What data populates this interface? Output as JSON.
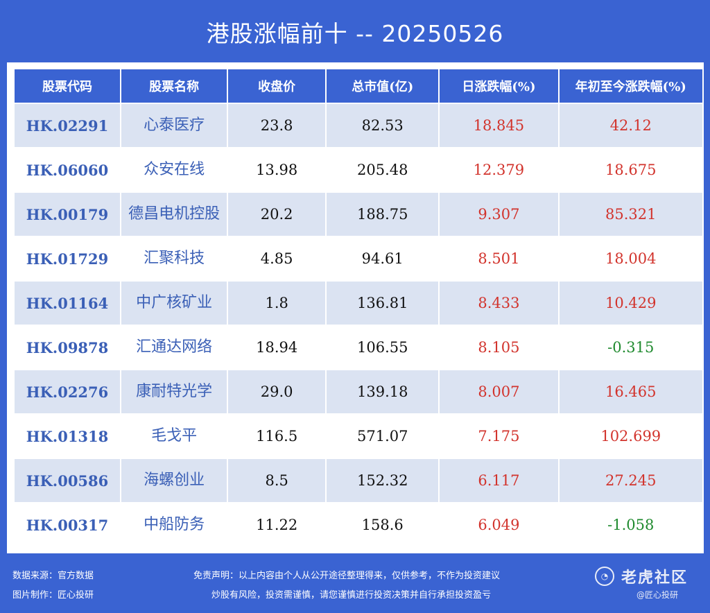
{
  "title": "港股涨幅前十 -- 20250526",
  "headers": [
    "股票代码",
    "股票名称",
    "收盘价",
    "总市值(亿)",
    "日涨跌幅(%)",
    "年初至今涨跌幅(%)"
  ],
  "rows": [
    {
      "code": "HK.02291",
      "name": "心泰医疗",
      "close": "23.8",
      "mcap": "82.53",
      "day": "18.845",
      "ytd": "42.12",
      "ytd_sign": "up"
    },
    {
      "code": "HK.06060",
      "name": "众安在线",
      "close": "13.98",
      "mcap": "205.48",
      "day": "12.379",
      "ytd": "18.675",
      "ytd_sign": "up"
    },
    {
      "code": "HK.00179",
      "name": "德昌电机控股",
      "close": "20.2",
      "mcap": "188.75",
      "day": "9.307",
      "ytd": "85.321",
      "ytd_sign": "up"
    },
    {
      "code": "HK.01729",
      "name": "汇聚科技",
      "close": "4.85",
      "mcap": "94.61",
      "day": "8.501",
      "ytd": "18.004",
      "ytd_sign": "up"
    },
    {
      "code": "HK.01164",
      "name": "中广核矿业",
      "close": "1.8",
      "mcap": "136.81",
      "day": "8.433",
      "ytd": "10.429",
      "ytd_sign": "up"
    },
    {
      "code": "HK.09878",
      "name": "汇通达网络",
      "close": "18.94",
      "mcap": "106.55",
      "day": "8.105",
      "ytd": "-0.315",
      "ytd_sign": "down"
    },
    {
      "code": "HK.02276",
      "name": "康耐特光学",
      "close": "29.0",
      "mcap": "139.18",
      "day": "8.007",
      "ytd": "16.465",
      "ytd_sign": "up"
    },
    {
      "code": "HK.01318",
      "name": "毛戈平",
      "close": "116.5",
      "mcap": "571.07",
      "day": "7.175",
      "ytd": "102.699",
      "ytd_sign": "up"
    },
    {
      "code": "HK.00586",
      "name": "海螺创业",
      "close": "8.5",
      "mcap": "152.32",
      "day": "6.117",
      "ytd": "27.245",
      "ytd_sign": "up"
    },
    {
      "code": "HK.00317",
      "name": "中船防务",
      "close": "11.22",
      "mcap": "158.6",
      "day": "6.049",
      "ytd": "-1.058",
      "ytd_sign": "down"
    }
  ],
  "footer": {
    "source": "数据来源：官方数据",
    "maker": "图片制作：匠心投研",
    "disclaimer1": "免责声明：以上内容由个人从公开途径整理得来，仅供参考，不作为投资建议",
    "disclaimer2": "炒股有风险，投资需谨慎，请您谨慎进行投资决策并自行承担投资盈亏"
  },
  "watermark": {
    "text": "老虎社区",
    "sub": "@匠心投研",
    "icon": "tiger-logo-icon"
  },
  "colors": {
    "background": "#3a63d2",
    "row_alt": "#dbe3f2",
    "up": "#d2332c",
    "down": "#1f8a2e",
    "code_text": "#3a5fb6"
  }
}
